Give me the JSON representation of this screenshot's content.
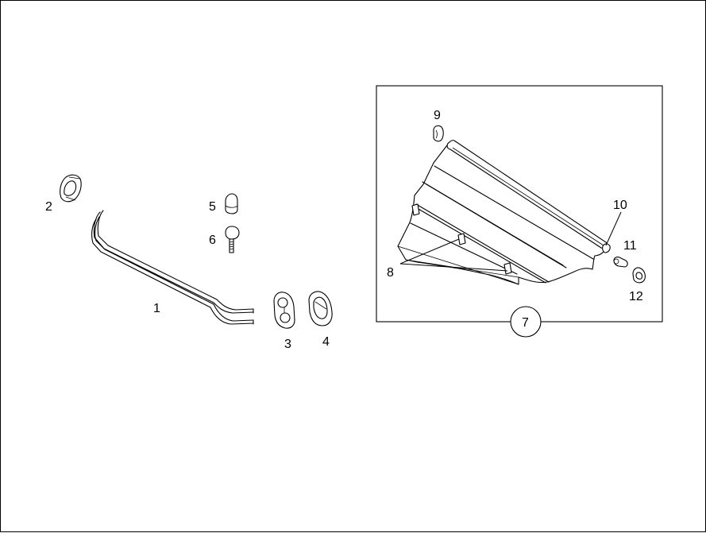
{
  "callouts": {
    "c1": "1",
    "c2": "2",
    "c3": "3",
    "c4": "4",
    "c5": "5",
    "c6": "6",
    "c7": "7",
    "c8": "8",
    "c9": "9",
    "c10": "10",
    "c11": "11",
    "c12": "12"
  }
}
